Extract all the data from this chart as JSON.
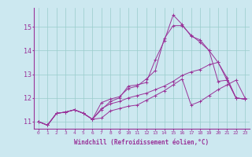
{
  "xlabel": "Windchill (Refroidissement éolien,°C)",
  "background_color": "#cce8f0",
  "grid_color": "#99cccc",
  "line_color": "#993399",
  "axis_color": "#993399",
  "xlim": [
    -0.5,
    23.5
  ],
  "ylim": [
    10.7,
    15.8
  ],
  "xticks": [
    0,
    1,
    2,
    3,
    4,
    5,
    6,
    7,
    8,
    9,
    10,
    11,
    12,
    13,
    14,
    15,
    16,
    17,
    18,
    19,
    20,
    21,
    22,
    23
  ],
  "yticks": [
    11,
    12,
    13,
    14,
    15
  ],
  "lines": [
    [
      11.0,
      10.85,
      11.35,
      11.4,
      11.5,
      11.35,
      11.1,
      11.5,
      11.85,
      12.0,
      12.5,
      12.55,
      12.65,
      13.6,
      14.4,
      15.5,
      15.1,
      14.6,
      14.45,
      14.0,
      12.7,
      12.75,
      12.0,
      11.95
    ],
    [
      11.0,
      10.85,
      11.35,
      11.4,
      11.5,
      11.35,
      11.1,
      11.15,
      11.45,
      11.55,
      11.65,
      11.7,
      11.9,
      12.1,
      12.3,
      12.55,
      12.8,
      11.7,
      11.85,
      12.1,
      12.35,
      12.55,
      12.75,
      12.0
    ],
    [
      11.0,
      10.85,
      11.35,
      11.4,
      11.5,
      11.35,
      11.1,
      11.8,
      11.95,
      12.05,
      12.4,
      12.5,
      12.8,
      13.15,
      14.5,
      15.05,
      15.05,
      14.65,
      14.35,
      14.0,
      13.5,
      12.85,
      12.0,
      11.95
    ],
    [
      11.0,
      10.85,
      11.35,
      11.4,
      11.5,
      11.35,
      11.1,
      11.55,
      11.75,
      11.85,
      12.0,
      12.1,
      12.2,
      12.35,
      12.5,
      12.7,
      12.95,
      13.1,
      13.2,
      13.4,
      13.5,
      12.75,
      12.0,
      11.95
    ]
  ]
}
